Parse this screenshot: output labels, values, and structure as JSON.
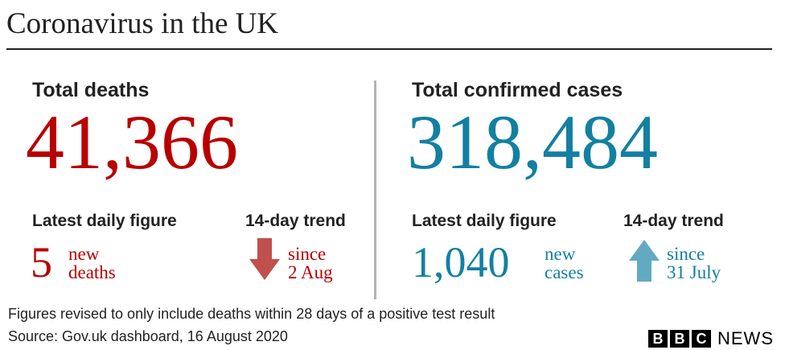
{
  "header": {
    "title": "Coronavirus in the UK"
  },
  "panels": [
    {
      "heading": "Total deaths",
      "total": "41,366",
      "daily": {
        "label": "Latest daily figure",
        "value": "5",
        "unit_lines": [
          "new",
          "deaths"
        ]
      },
      "trend": {
        "label": "14-day trend",
        "direction": "down",
        "lines": [
          "since",
          "2 Aug"
        ]
      }
    },
    {
      "heading": "Total confirmed cases",
      "total": "318,484",
      "daily": {
        "label": "Latest daily figure",
        "value": "1,040",
        "unit_lines": [
          "new",
          "cases"
        ]
      },
      "trend": {
        "label": "14-day trend",
        "direction": "up",
        "lines": [
          "since",
          "31 July"
        ]
      }
    }
  ],
  "footer": {
    "note": "Figures revised to only include deaths within 28 days of a positive test result",
    "source": "Source: Gov.uk dashboard, 16 August 2020"
  },
  "logo": {
    "letters": [
      "B",
      "B",
      "C"
    ],
    "text": "NEWS"
  }
}
